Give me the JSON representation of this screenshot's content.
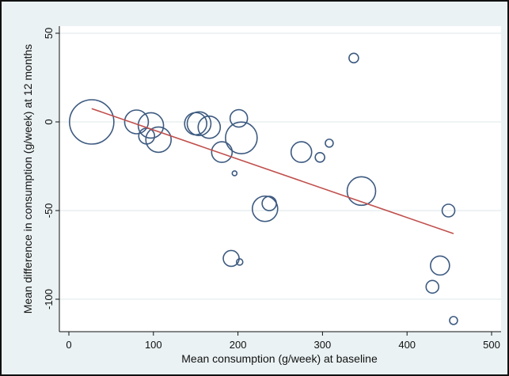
{
  "chart_data": {
    "type": "scatter",
    "title": "",
    "xlabel": "Mean consumption (g/week) at baseline",
    "ylabel": "Mean difference in consumption (g/week) at 12 months",
    "xlim": [
      0,
      500
    ],
    "ylim": [
      -115,
      55
    ],
    "xticks": [
      0,
      100,
      200,
      300,
      400,
      500
    ],
    "yticks": [
      50,
      0,
      -50,
      -100
    ],
    "grid": "horizontal",
    "legend": "none",
    "colors": {
      "background": "#eaf2f3",
      "plot_area": "#ffffff",
      "marker": "#3d5a80",
      "fit_line": "#c0504d"
    },
    "points": [
      {
        "x": 27,
        "y": 0,
        "size": 28
      },
      {
        "x": 80,
        "y": 0,
        "size": 15
      },
      {
        "x": 92,
        "y": -8,
        "size": 10
      },
      {
        "x": 97,
        "y": -2,
        "size": 16
      },
      {
        "x": 106,
        "y": -10,
        "size": 16
      },
      {
        "x": 150,
        "y": -1,
        "size": 14
      },
      {
        "x": 154,
        "y": -1,
        "size": 15
      },
      {
        "x": 166,
        "y": -3,
        "size": 14
      },
      {
        "x": 181,
        "y": -17,
        "size": 13
      },
      {
        "x": 192,
        "y": -77,
        "size": 10
      },
      {
        "x": 196,
        "y": -29,
        "size": 3
      },
      {
        "x": 201,
        "y": 2,
        "size": 11
      },
      {
        "x": 202,
        "y": -79,
        "size": 4
      },
      {
        "x": 204,
        "y": -9,
        "size": 20
      },
      {
        "x": 232,
        "y": -49,
        "size": 16
      },
      {
        "x": 237,
        "y": -46,
        "size": 9
      },
      {
        "x": 275,
        "y": -17,
        "size": 13
      },
      {
        "x": 297,
        "y": -20,
        "size": 6
      },
      {
        "x": 308,
        "y": -12,
        "size": 5
      },
      {
        "x": 337,
        "y": 36,
        "size": 6
      },
      {
        "x": 346,
        "y": -39,
        "size": 18
      },
      {
        "x": 430,
        "y": -93,
        "size": 8
      },
      {
        "x": 439,
        "y": -81,
        "size": 12
      },
      {
        "x": 449,
        "y": -50,
        "size": 8
      },
      {
        "x": 455,
        "y": -112,
        "size": 5
      }
    ],
    "fit_line": {
      "x": [
        27,
        455
      ],
      "y": [
        7.5,
        -63
      ]
    }
  }
}
